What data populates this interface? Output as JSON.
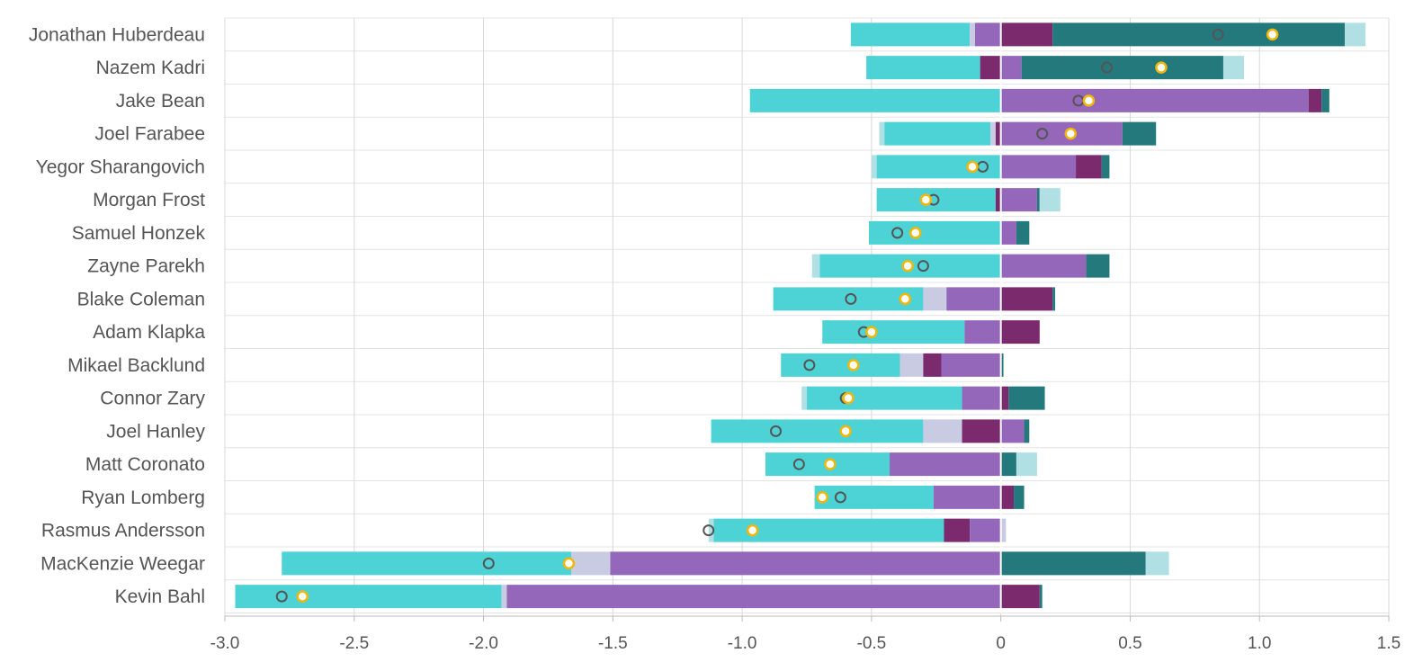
{
  "chart_data": {
    "type": "bar",
    "orientation": "horizontal",
    "stacked": "diverging",
    "xlim": [
      -3.0,
      1.5
    ],
    "xticks": [
      "-3.0",
      "-2.5",
      "-2.0",
      "-1.5",
      "-1.0",
      "-0.5",
      "0",
      "0.5",
      "1.0",
      "1.5"
    ],
    "xtick_values": [
      -3.0,
      -2.5,
      -2.0,
      -1.5,
      -1.0,
      -0.5,
      0,
      0.5,
      1.0,
      1.5
    ],
    "grid": true,
    "legend": "none",
    "colors": {
      "cyan": "#4dd3d5",
      "light_lavender": "#c9cbe3",
      "purple": "#9467bb",
      "plum": "#7a2a6d",
      "teal": "#24797c",
      "light_cyan": "#b1e0e4",
      "marker_gray": "#555555",
      "marker_gold": "#f2b705"
    },
    "players": [
      {
        "name": "Jonathan Huberdeau",
        "segments": [
          [
            -0.58,
            -0.12,
            "cyan"
          ],
          [
            -0.12,
            -0.1,
            "light_lavender"
          ],
          [
            -0.1,
            0,
            "purple"
          ],
          [
            0,
            0.2,
            "plum"
          ],
          [
            0.2,
            1.33,
            "teal"
          ],
          [
            1.33,
            1.41,
            "light_cyan"
          ]
        ],
        "gray_marker": 0.84,
        "gold_marker": 1.05
      },
      {
        "name": "Nazem Kadri",
        "segments": [
          [
            -0.52,
            -0.08,
            "cyan"
          ],
          [
            -0.08,
            0,
            "plum"
          ],
          [
            0,
            0.08,
            "purple"
          ],
          [
            0.08,
            0.86,
            "teal"
          ],
          [
            0.86,
            0.94,
            "light_cyan"
          ]
        ],
        "gray_marker": 0.41,
        "gold_marker": 0.62
      },
      {
        "name": "Jake Bean",
        "segments": [
          [
            -0.97,
            0,
            "cyan"
          ],
          [
            0,
            1.19,
            "purple"
          ],
          [
            1.19,
            1.24,
            "plum"
          ],
          [
            1.24,
            1.27,
            "teal"
          ]
        ],
        "gray_marker": 0.3,
        "gold_marker": 0.34
      },
      {
        "name": "Joel Farabee",
        "segments": [
          [
            -0.47,
            -0.45,
            "light_cyan"
          ],
          [
            -0.45,
            -0.04,
            "cyan"
          ],
          [
            -0.04,
            -0.02,
            "light_lavender"
          ],
          [
            -0.02,
            0,
            "plum"
          ],
          [
            0,
            0.47,
            "purple"
          ],
          [
            0.47,
            0.6,
            "teal"
          ]
        ],
        "gray_marker": 0.16,
        "gold_marker": 0.27
      },
      {
        "name": "Yegor Sharangovich",
        "segments": [
          [
            -0.5,
            -0.48,
            "light_cyan"
          ],
          [
            -0.48,
            0,
            "cyan"
          ],
          [
            0,
            0.29,
            "purple"
          ],
          [
            0.29,
            0.39,
            "plum"
          ],
          [
            0.39,
            0.42,
            "teal"
          ]
        ],
        "gray_marker": -0.07,
        "gold_marker": -0.11
      },
      {
        "name": "Morgan Frost",
        "segments": [
          [
            -0.48,
            -0.02,
            "cyan"
          ],
          [
            -0.02,
            0,
            "plum"
          ],
          [
            0,
            0.14,
            "purple"
          ],
          [
            0.14,
            0.15,
            "teal"
          ],
          [
            0.15,
            0.23,
            "light_cyan"
          ]
        ],
        "gray_marker": -0.26,
        "gold_marker": -0.29
      },
      {
        "name": "Samuel Honzek",
        "segments": [
          [
            -0.51,
            0,
            "cyan"
          ],
          [
            0,
            0.06,
            "purple"
          ],
          [
            0.06,
            0.11,
            "teal"
          ]
        ],
        "gray_marker": -0.4,
        "gold_marker": -0.33
      },
      {
        "name": "Zayne Parekh",
        "segments": [
          [
            -0.73,
            -0.7,
            "light_cyan"
          ],
          [
            -0.7,
            0,
            "cyan"
          ],
          [
            0,
            0.33,
            "purple"
          ],
          [
            0.33,
            0.42,
            "teal"
          ]
        ],
        "gray_marker": -0.3,
        "gold_marker": -0.36
      },
      {
        "name": "Blake Coleman",
        "segments": [
          [
            -0.88,
            -0.3,
            "cyan"
          ],
          [
            -0.3,
            -0.21,
            "light_lavender"
          ],
          [
            -0.21,
            0,
            "purple"
          ],
          [
            0,
            0.2,
            "plum"
          ],
          [
            0.2,
            0.21,
            "teal"
          ]
        ],
        "gray_marker": -0.58,
        "gold_marker": -0.37
      },
      {
        "name": "Adam Klapka",
        "segments": [
          [
            -0.69,
            -0.14,
            "cyan"
          ],
          [
            -0.14,
            0,
            "purple"
          ],
          [
            0,
            0.15,
            "plum"
          ]
        ],
        "gray_marker": -0.53,
        "gold_marker": -0.5
      },
      {
        "name": "Mikael Backlund",
        "segments": [
          [
            -0.85,
            -0.39,
            "cyan"
          ],
          [
            -0.39,
            -0.3,
            "light_lavender"
          ],
          [
            -0.3,
            -0.23,
            "plum"
          ],
          [
            -0.23,
            0,
            "purple"
          ],
          [
            0,
            0.01,
            "teal"
          ]
        ],
        "gray_marker": -0.74,
        "gold_marker": -0.57
      },
      {
        "name": "Connor Zary",
        "segments": [
          [
            -0.77,
            -0.75,
            "light_cyan"
          ],
          [
            -0.75,
            -0.15,
            "cyan"
          ],
          [
            -0.15,
            0,
            "purple"
          ],
          [
            0,
            0.03,
            "plum"
          ],
          [
            0.03,
            0.17,
            "teal"
          ]
        ],
        "gray_marker": -0.6,
        "gold_marker": -0.59
      },
      {
        "name": "Joel Hanley",
        "segments": [
          [
            -1.12,
            -0.3,
            "cyan"
          ],
          [
            -0.3,
            -0.15,
            "light_lavender"
          ],
          [
            -0.15,
            0,
            "plum"
          ],
          [
            0,
            0.09,
            "purple"
          ],
          [
            0.09,
            0.11,
            "teal"
          ]
        ],
        "gray_marker": -0.87,
        "gold_marker": -0.6
      },
      {
        "name": "Matt Coronato",
        "segments": [
          [
            -0.91,
            -0.43,
            "cyan"
          ],
          [
            -0.43,
            0,
            "purple"
          ],
          [
            0,
            0.06,
            "teal"
          ],
          [
            0.06,
            0.14,
            "light_cyan"
          ]
        ],
        "gray_marker": -0.78,
        "gold_marker": -0.66
      },
      {
        "name": "Ryan Lomberg",
        "segments": [
          [
            -0.72,
            -0.26,
            "cyan"
          ],
          [
            -0.26,
            0,
            "purple"
          ],
          [
            0,
            0.05,
            "plum"
          ],
          [
            0.05,
            0.09,
            "teal"
          ]
        ],
        "gray_marker": -0.62,
        "gold_marker": -0.69
      },
      {
        "name": "Rasmus Andersson",
        "segments": [
          [
            -1.13,
            -1.11,
            "light_cyan"
          ],
          [
            -1.11,
            -0.22,
            "cyan"
          ],
          [
            -0.22,
            -0.12,
            "plum"
          ],
          [
            -0.12,
            0,
            "purple"
          ],
          [
            0,
            0.02,
            "light_lavender"
          ]
        ],
        "gray_marker": -1.13,
        "gold_marker": -0.96
      },
      {
        "name": "MacKenzie Weegar",
        "segments": [
          [
            -2.78,
            -1.66,
            "cyan"
          ],
          [
            -1.66,
            -1.51,
            "light_lavender"
          ],
          [
            -1.51,
            0,
            "purple"
          ],
          [
            0,
            0.56,
            "teal"
          ],
          [
            0.56,
            0.65,
            "light_cyan"
          ]
        ],
        "gray_marker": -1.98,
        "gold_marker": -1.67
      },
      {
        "name": "Kevin Bahl",
        "segments": [
          [
            -2.96,
            -1.93,
            "cyan"
          ],
          [
            -1.93,
            -1.91,
            "light_lavender"
          ],
          [
            -1.91,
            0,
            "purple"
          ],
          [
            0,
            0.15,
            "plum"
          ],
          [
            0.15,
            0.16,
            "teal"
          ]
        ],
        "gray_marker": -2.78,
        "gold_marker": -2.7
      }
    ]
  }
}
